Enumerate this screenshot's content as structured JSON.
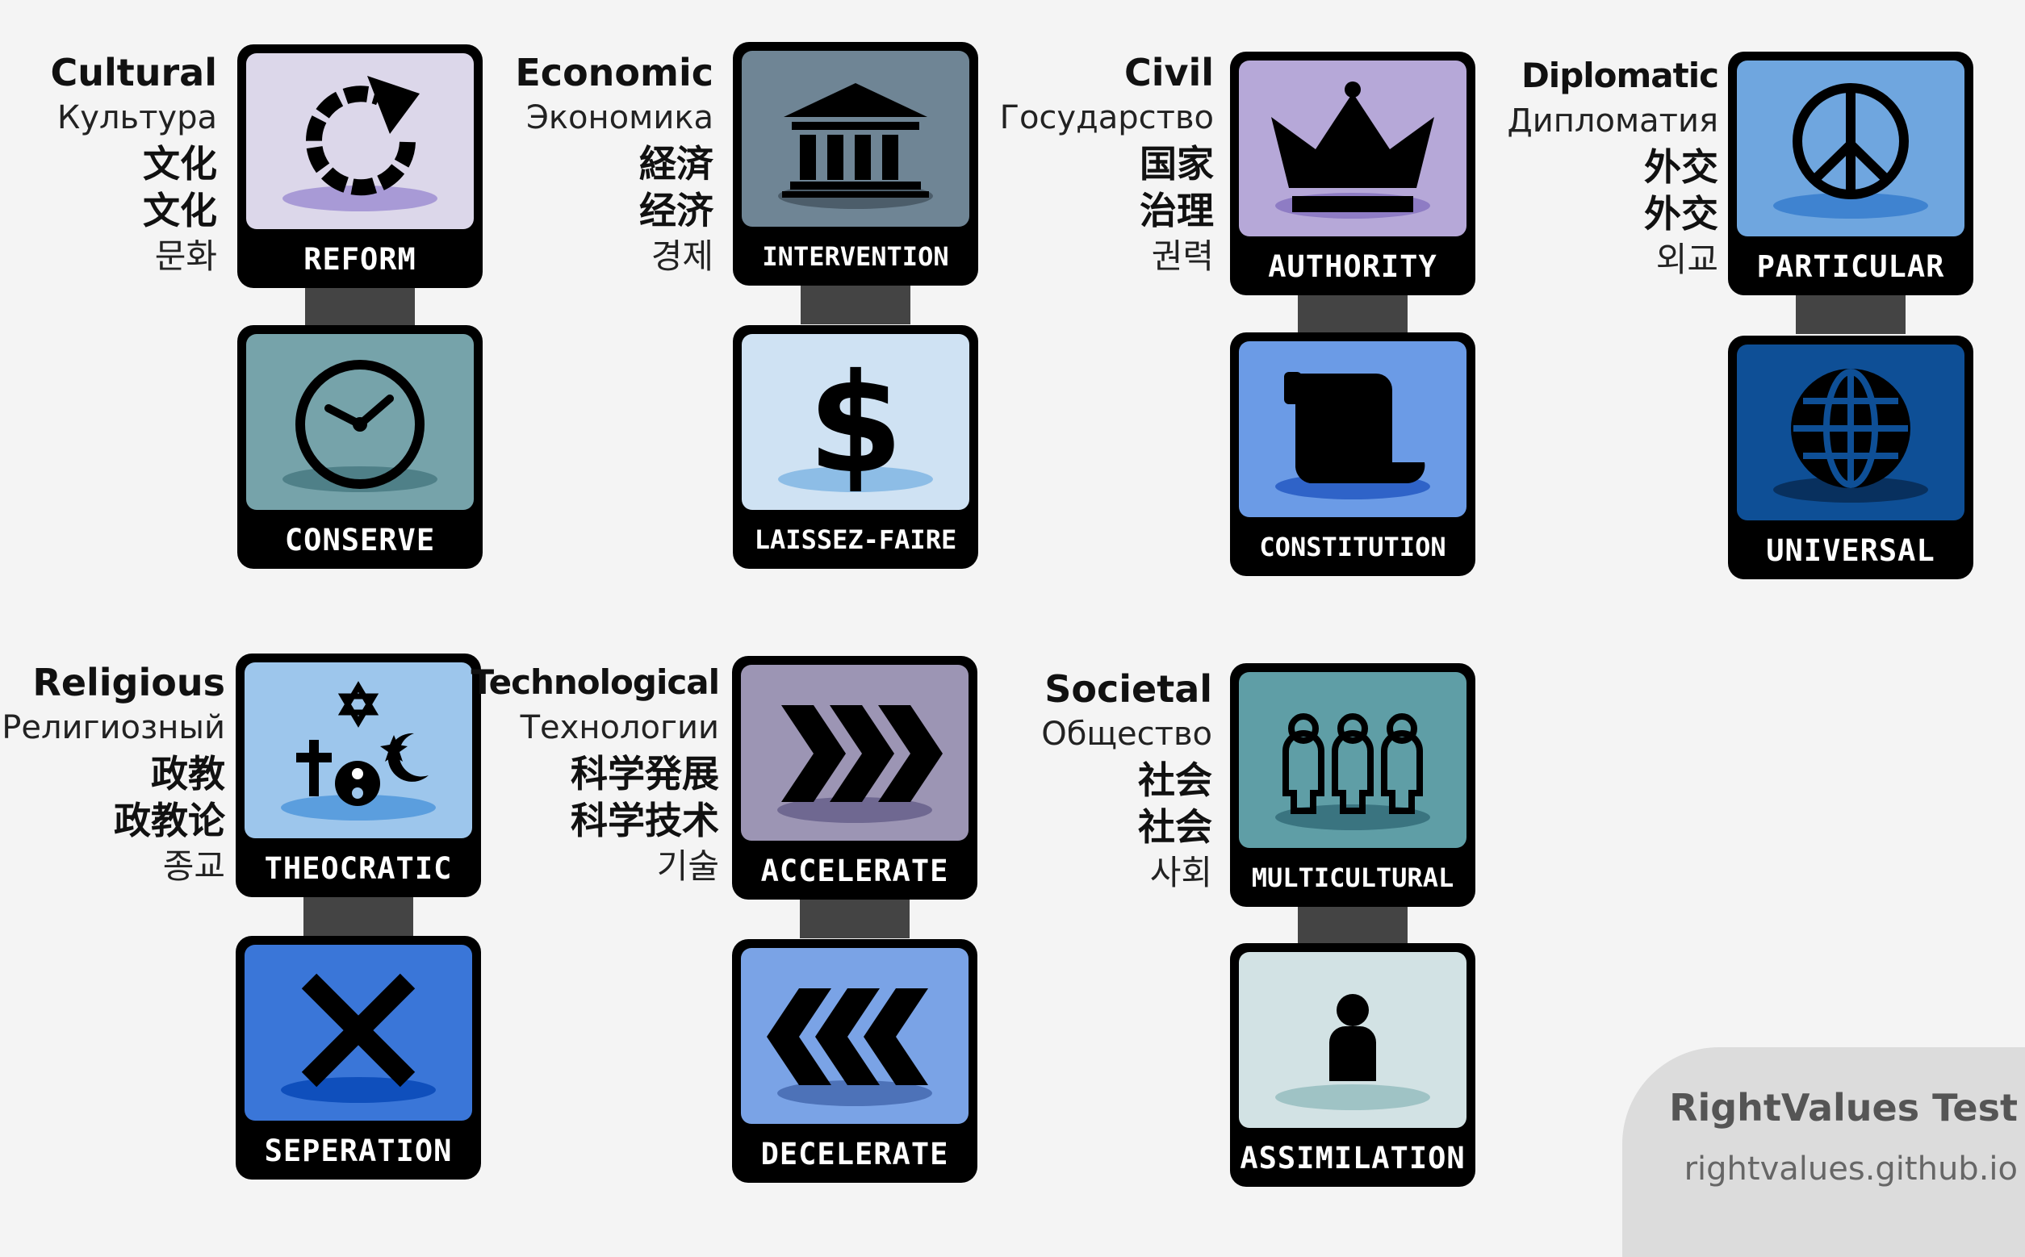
{
  "axes": {
    "cultural": {
      "title": "Cultural",
      "ru": "Культура",
      "ja": "文化",
      "zh": "文化",
      "ko": "문화",
      "top": {
        "label": "REFORM",
        "icon": "circular-arrow-icon",
        "bg": "#dcd7ea"
      },
      "bottom": {
        "label": "CONSERVE",
        "icon": "clock-icon",
        "bg": "#76a3aa"
      }
    },
    "economic": {
      "title": "Economic",
      "ru": "Экономика",
      "ja": "経済",
      "zh": "经济",
      "ko": "경제",
      "top": {
        "label": "INTERVENTION",
        "icon": "government-building-icon",
        "bg": "#6f8595"
      },
      "bottom": {
        "label": "LAISSEZ-FAIRE",
        "icon": "dollar-icon",
        "bg": "#cfe2f3"
      }
    },
    "civil": {
      "title": "Civil",
      "ru": "Государство",
      "ja": "国家",
      "zh": "治理",
      "ko": "권력",
      "top": {
        "label": "AUTHORITY",
        "icon": "crown-icon",
        "bg": "#b6a8d8"
      },
      "bottom": {
        "label": "CONSTITUTION",
        "icon": "scroll-icon",
        "bg": "#6b9be6"
      }
    },
    "diplomatic": {
      "title": "Diplomatic",
      "ru": "Дипломатия",
      "ja": "外交",
      "zh": "外交",
      "ko": "외교",
      "top": {
        "label": "PARTICULAR",
        "icon": "peace-icon",
        "bg": "#6fa6df"
      },
      "bottom": {
        "label": "UNIVERSAL",
        "icon": "globe-icon",
        "bg": "#0e4f96"
      }
    },
    "religious": {
      "title": "Religious",
      "ru": "Религиозный",
      "ja": "政教",
      "zh": "政教论",
      "ko": "종교",
      "top": {
        "label": "THEOCRATIC",
        "icon": "religious-symbols-icon",
        "bg": "#9dc6ec"
      },
      "bottom": {
        "label": "SEPERATION",
        "icon": "cross-x-icon",
        "bg": "#3a76d8"
      }
    },
    "technological": {
      "title": "Technological",
      "ru": "Технологии",
      "ja": "科学発展",
      "zh": "科学技术",
      "ko": "기술",
      "top": {
        "label": "ACCELERATE",
        "icon": "forward-chevrons-icon",
        "bg": "#9c95b4"
      },
      "bottom": {
        "label": "DECELERATE",
        "icon": "backward-chevrons-icon",
        "bg": "#7aa3e6"
      }
    },
    "societal": {
      "title": "Societal",
      "ru": "Общество",
      "ja": "社会",
      "zh": "社会",
      "ko": "사회",
      "top": {
        "label": "MULTICULTURAL",
        "icon": "group-people-icon",
        "bg": "#5f9ea6"
      },
      "bottom": {
        "label": "ASSIMILATION",
        "icon": "person-icon",
        "bg": "#d2e2e4"
      }
    }
  },
  "branding": {
    "title": "RightValues Test",
    "url": "rightvalues.github.io"
  }
}
